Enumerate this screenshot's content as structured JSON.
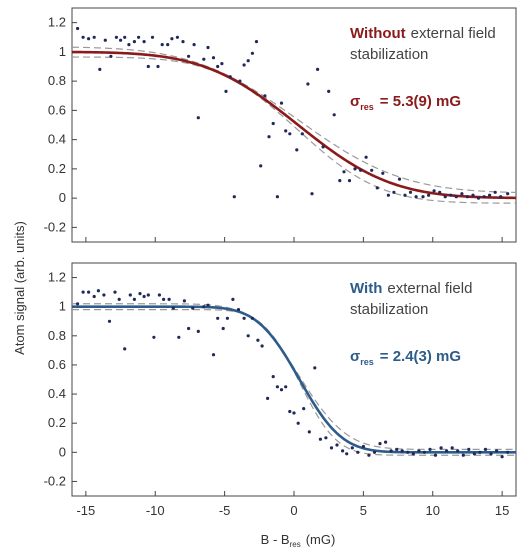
{
  "figure": {
    "ylabel": "Atom signal (arb. units)",
    "xlabel_main": "B - B",
    "xlabel_sub": "res",
    "xlabel_unit": "(mG)"
  },
  "chart_data": [
    {
      "type": "scatter",
      "panel": "top",
      "title": "",
      "xlim": [
        -16,
        16
      ],
      "ylim": [
        -0.3,
        1.3
      ],
      "yticks": [
        -0.2,
        0,
        0.2,
        0.4,
        0.6,
        0.8,
        1,
        1.2
      ],
      "xticks": [
        -15,
        -10,
        -5,
        0,
        5,
        10,
        15
      ],
      "fit": {
        "type": "error-function",
        "center": 0.3,
        "width": 5.3,
        "upper": 1.0,
        "lower": 0.0,
        "band": 0.035,
        "color": "#8b1a1a"
      },
      "annotation": {
        "bold": "Without",
        "rest": "external field",
        "line2": "stabilization",
        "sigma": "σ",
        "sigma_sub": "res",
        "sigma_value": "= 5.3(9) mG",
        "color": "#8b1a1a"
      },
      "series": [
        {
          "points": [
            [
              -15.6,
              1.16
            ],
            [
              -15.2,
              1.1
            ],
            [
              -14.8,
              1.09
            ],
            [
              -14.4,
              1.1
            ],
            [
              -14.0,
              0.88
            ],
            [
              -13.6,
              1.08
            ],
            [
              -13.2,
              0.97
            ],
            [
              -12.8,
              1.1
            ],
            [
              -12.5,
              1.08
            ],
            [
              -12.2,
              1.1
            ],
            [
              -11.9,
              1.05
            ],
            [
              -11.5,
              1.07
            ],
            [
              -11.2,
              1.1
            ],
            [
              -10.8,
              1.07
            ],
            [
              -10.5,
              0.9
            ],
            [
              -10.2,
              1.1
            ],
            [
              -9.8,
              0.9
            ],
            [
              -9.5,
              1.05
            ],
            [
              -9.1,
              1.05
            ],
            [
              -8.8,
              1.09
            ],
            [
              -8.4,
              1.1
            ],
            [
              -8.0,
              1.07
            ],
            [
              -7.6,
              0.97
            ],
            [
              -7.2,
              1.05
            ],
            [
              -6.9,
              0.55
            ],
            [
              -6.5,
              0.95
            ],
            [
              -6.2,
              1.03
            ],
            [
              -5.8,
              0.96
            ],
            [
              -5.5,
              0.9
            ],
            [
              -5.2,
              0.92
            ],
            [
              -4.9,
              0.73
            ],
            [
              -4.6,
              0.83
            ],
            [
              -4.3,
              0.01
            ],
            [
              -3.9,
              0.8
            ],
            [
              -3.6,
              0.91
            ],
            [
              -3.3,
              0.94
            ],
            [
              -3.0,
              0.99
            ],
            [
              -2.7,
              1.07
            ],
            [
              -2.4,
              0.22
            ],
            [
              -2.1,
              0.7
            ],
            [
              -1.8,
              0.42
            ],
            [
              -1.5,
              0.51
            ],
            [
              -1.2,
              0.01
            ],
            [
              -0.9,
              0.65
            ],
            [
              -0.6,
              0.46
            ],
            [
              -0.3,
              0.44
            ],
            [
              0.2,
              0.33
            ],
            [
              0.6,
              0.44
            ],
            [
              1.0,
              0.78
            ],
            [
              1.3,
              0.03
            ],
            [
              1.7,
              0.88
            ],
            [
              2.1,
              0.35
            ],
            [
              2.5,
              0.73
            ],
            [
              2.9,
              0.57
            ],
            [
              3.3,
              0.12
            ],
            [
              3.6,
              0.18
            ],
            [
              4.0,
              0.12
            ],
            [
              4.4,
              0.2
            ],
            [
              4.8,
              0.19
            ],
            [
              5.2,
              0.28
            ],
            [
              5.6,
              0.19
            ],
            [
              6.0,
              0.07
            ],
            [
              6.4,
              0.17
            ],
            [
              6.8,
              0.02
            ],
            [
              7.2,
              0.04
            ],
            [
              7.6,
              0.13
            ],
            [
              8.0,
              0.02
            ],
            [
              8.4,
              0.04
            ],
            [
              8.8,
              0.01
            ],
            [
              9.3,
              0.01
            ],
            [
              9.7,
              0.02
            ],
            [
              10.1,
              0.05
            ],
            [
              10.5,
              0.04
            ],
            [
              10.9,
              0.01
            ],
            [
              11.3,
              0.02
            ],
            [
              11.7,
              0.01
            ],
            [
              12.1,
              0.03
            ],
            [
              12.5,
              0.01
            ],
            [
              12.9,
              0.02
            ],
            [
              13.3,
              0.0
            ],
            [
              13.7,
              0.01
            ],
            [
              14.1,
              0.02
            ],
            [
              14.5,
              0.04
            ],
            [
              14.9,
              0.01
            ],
            [
              15.4,
              0.03
            ]
          ]
        }
      ]
    },
    {
      "type": "scatter",
      "panel": "bottom",
      "title": "",
      "xlim": [
        -16,
        16
      ],
      "ylim": [
        -0.3,
        1.3
      ],
      "yticks": [
        -0.2,
        0,
        0.2,
        0.4,
        0.6,
        0.8,
        1,
        1.2
      ],
      "xticks": [
        -15,
        -10,
        -5,
        0,
        5,
        10,
        15
      ],
      "fit": {
        "type": "error-function",
        "center": 0.4,
        "width": 2.4,
        "upper": 1.0,
        "lower": 0.0,
        "band": 0.02,
        "color": "#2e5c8a"
      },
      "annotation": {
        "bold": "With",
        "rest": "external field",
        "line2": "stabilization",
        "sigma": "σ",
        "sigma_sub": "res",
        "sigma_value": "= 2.4(3) mG",
        "color": "#2e5c8a"
      },
      "series": [
        {
          "points": [
            [
              -15.6,
              1.02
            ],
            [
              -15.2,
              1.1
            ],
            [
              -14.8,
              1.1
            ],
            [
              -14.4,
              1.07
            ],
            [
              -14.1,
              1.11
            ],
            [
              -13.7,
              1.08
            ],
            [
              -13.3,
              0.9
            ],
            [
              -12.9,
              1.1
            ],
            [
              -12.6,
              1.05
            ],
            [
              -12.2,
              0.71
            ],
            [
              -11.8,
              1.08
            ],
            [
              -11.5,
              1.05
            ],
            [
              -11.1,
              1.09
            ],
            [
              -10.8,
              1.07
            ],
            [
              -10.5,
              1.08
            ],
            [
              -10.1,
              0.79
            ],
            [
              -9.7,
              1.08
            ],
            [
              -9.4,
              1.05
            ],
            [
              -9.0,
              1.05
            ],
            [
              -8.7,
              0.99
            ],
            [
              -8.3,
              0.79
            ],
            [
              -7.9,
              1.04
            ],
            [
              -7.6,
              0.85
            ],
            [
              -7.3,
              0.99
            ],
            [
              -6.9,
              0.83
            ],
            [
              -6.5,
              1.0
            ],
            [
              -6.2,
              1.01
            ],
            [
              -5.8,
              0.67
            ],
            [
              -5.5,
              0.92
            ],
            [
              -5.1,
              0.85
            ],
            [
              -4.8,
              0.92
            ],
            [
              -4.4,
              1.05
            ],
            [
              -4.0,
              0.98
            ],
            [
              -3.6,
              0.92
            ],
            [
              -3.3,
              0.8
            ],
            [
              -3.0,
              0.92
            ],
            [
              -2.6,
              0.77
            ],
            [
              -2.3,
              0.73
            ],
            [
              -1.9,
              0.37
            ],
            [
              -1.5,
              0.52
            ],
            [
              -1.2,
              0.45
            ],
            [
              -0.9,
              0.43
            ],
            [
              -0.6,
              0.45
            ],
            [
              -0.3,
              0.28
            ],
            [
              0.0,
              0.27
            ],
            [
              0.3,
              0.2
            ],
            [
              0.7,
              0.3
            ],
            [
              1.1,
              0.14
            ],
            [
              1.5,
              0.58
            ],
            [
              1.9,
              0.09
            ],
            [
              2.3,
              0.1
            ],
            [
              2.7,
              0.03
            ],
            [
              3.1,
              0.05
            ],
            [
              3.5,
              0.01
            ],
            [
              3.8,
              -0.01
            ],
            [
              4.2,
              0.03
            ],
            [
              4.6,
              0.0
            ],
            [
              5.0,
              0.04
            ],
            [
              5.4,
              -0.02
            ],
            [
              5.8,
              0.0
            ],
            [
              6.2,
              0.06
            ],
            [
              6.6,
              0.07
            ],
            [
              7.0,
              0.01
            ],
            [
              7.4,
              0.02
            ],
            [
              7.8,
              0.01
            ],
            [
              8.2,
              0.0
            ],
            [
              8.6,
              -0.01
            ],
            [
              9.0,
              0.01
            ],
            [
              9.4,
              0.0
            ],
            [
              9.8,
              0.02
            ],
            [
              10.2,
              -0.02
            ],
            [
              10.6,
              0.03
            ],
            [
              11.0,
              0.01
            ],
            [
              11.4,
              0.03
            ],
            [
              11.8,
              0.01
            ],
            [
              12.2,
              -0.02
            ],
            [
              12.6,
              0.02
            ],
            [
              13.0,
              -0.01
            ],
            [
              13.4,
              0.0
            ],
            [
              13.8,
              0.02
            ],
            [
              14.2,
              -0.01
            ],
            [
              14.6,
              0.01
            ],
            [
              15.0,
              -0.03
            ],
            [
              15.4,
              0.0
            ]
          ]
        }
      ]
    }
  ]
}
